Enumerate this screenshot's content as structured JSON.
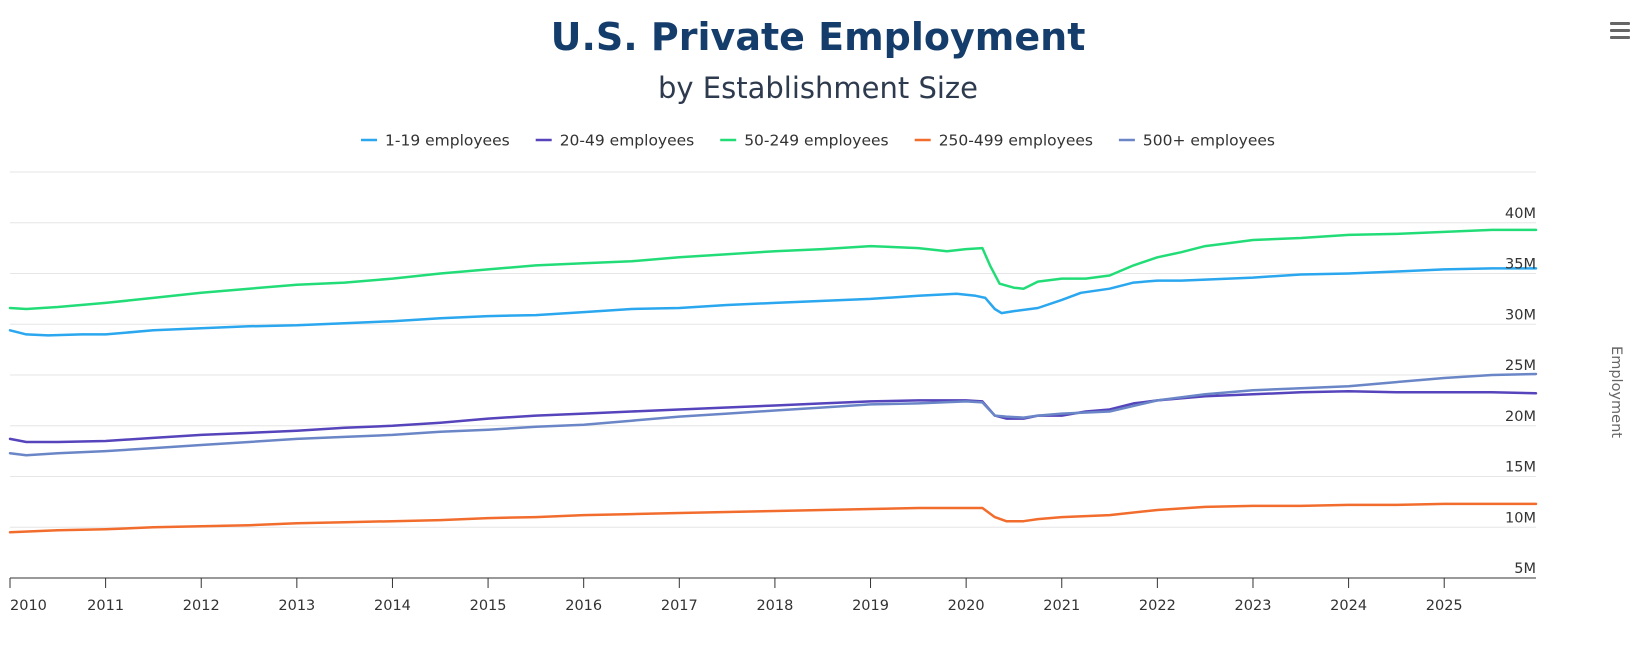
{
  "colors": {
    "title": "#143d6b",
    "subtitle": "#2e3a4d",
    "grid": "#e6e6e6",
    "axis": "#333333",
    "menu": "#666666"
  },
  "chart_data": {
    "type": "line",
    "title": "U.S. Private Employment",
    "subtitle": "by Establishment Size",
    "xlabel": "",
    "ylabel": "Employment",
    "xlim": [
      2010.0,
      2025.96
    ],
    "ylim": [
      5000000,
      45000000
    ],
    "x_ticks": [
      2010,
      2011,
      2012,
      2013,
      2014,
      2015,
      2016,
      2017,
      2018,
      2019,
      2020,
      2021,
      2022,
      2023,
      2024,
      2025
    ],
    "x_tick_labels": [
      "2010",
      "2011",
      "2012",
      "2013",
      "2014",
      "2015",
      "2016",
      "2017",
      "2018",
      "2019",
      "2020",
      "2021",
      "2022",
      "2023",
      "2024",
      "2025"
    ],
    "y_ticks": [
      5000000,
      10000000,
      15000000,
      20000000,
      25000000,
      30000000,
      35000000,
      40000000
    ],
    "y_tick_labels": [
      "5M",
      "10M",
      "15M",
      "20M",
      "25M",
      "30M",
      "35M",
      "40M"
    ],
    "y_axis_position": "right",
    "grid": true,
    "legend_position": "top-center",
    "series": [
      {
        "name": "1-19 employees",
        "color": "#2aa7ee",
        "points": [
          [
            2010.0,
            29.4
          ],
          [
            2010.17,
            29.0
          ],
          [
            2010.4,
            28.9
          ],
          [
            2010.75,
            29.0
          ],
          [
            2011.0,
            29.0
          ],
          [
            2011.5,
            29.4
          ],
          [
            2012.0,
            29.6
          ],
          [
            2012.5,
            29.8
          ],
          [
            2013.0,
            29.9
          ],
          [
            2013.5,
            30.1
          ],
          [
            2014.0,
            30.3
          ],
          [
            2014.5,
            30.6
          ],
          [
            2015.0,
            30.8
          ],
          [
            2015.5,
            30.9
          ],
          [
            2016.0,
            31.2
          ],
          [
            2016.5,
            31.5
          ],
          [
            2017.0,
            31.6
          ],
          [
            2017.5,
            31.9
          ],
          [
            2018.0,
            32.1
          ],
          [
            2018.5,
            32.3
          ],
          [
            2019.0,
            32.5
          ],
          [
            2019.5,
            32.8
          ],
          [
            2019.9,
            33.0
          ],
          [
            2020.1,
            32.8
          ],
          [
            2020.2,
            32.6
          ],
          [
            2020.3,
            31.5
          ],
          [
            2020.37,
            31.1
          ],
          [
            2020.5,
            31.3
          ],
          [
            2020.75,
            31.6
          ],
          [
            2021.0,
            32.4
          ],
          [
            2021.2,
            33.1
          ],
          [
            2021.5,
            33.5
          ],
          [
            2021.75,
            34.1
          ],
          [
            2022.0,
            34.3
          ],
          [
            2022.25,
            34.3
          ],
          [
            2022.5,
            34.4
          ],
          [
            2023.0,
            34.6
          ],
          [
            2023.5,
            34.9
          ],
          [
            2024.0,
            35.0
          ],
          [
            2024.5,
            35.2
          ],
          [
            2025.0,
            35.4
          ],
          [
            2025.5,
            35.5
          ],
          [
            2025.96,
            35.5
          ]
        ]
      },
      {
        "name": "20-49 employees",
        "color": "#5544bb",
        "points": [
          [
            2010.0,
            18.7
          ],
          [
            2010.17,
            18.4
          ],
          [
            2010.5,
            18.4
          ],
          [
            2011.0,
            18.5
          ],
          [
            2011.5,
            18.8
          ],
          [
            2012.0,
            19.1
          ],
          [
            2012.5,
            19.3
          ],
          [
            2013.0,
            19.5
          ],
          [
            2013.5,
            19.8
          ],
          [
            2014.0,
            20.0
          ],
          [
            2014.5,
            20.3
          ],
          [
            2015.0,
            20.7
          ],
          [
            2015.5,
            21.0
          ],
          [
            2016.0,
            21.2
          ],
          [
            2016.5,
            21.4
          ],
          [
            2017.0,
            21.6
          ],
          [
            2017.5,
            21.8
          ],
          [
            2018.0,
            22.0
          ],
          [
            2018.5,
            22.2
          ],
          [
            2019.0,
            22.4
          ],
          [
            2019.5,
            22.5
          ],
          [
            2020.0,
            22.5
          ],
          [
            2020.17,
            22.4
          ],
          [
            2020.3,
            21.0
          ],
          [
            2020.42,
            20.7
          ],
          [
            2020.6,
            20.7
          ],
          [
            2020.75,
            21.0
          ],
          [
            2021.0,
            21.0
          ],
          [
            2021.25,
            21.4
          ],
          [
            2021.5,
            21.6
          ],
          [
            2021.75,
            22.2
          ],
          [
            2022.0,
            22.5
          ],
          [
            2022.5,
            22.9
          ],
          [
            2023.0,
            23.1
          ],
          [
            2023.5,
            23.3
          ],
          [
            2024.0,
            23.4
          ],
          [
            2024.5,
            23.3
          ],
          [
            2025.0,
            23.3
          ],
          [
            2025.5,
            23.3
          ],
          [
            2025.96,
            23.2
          ]
        ]
      },
      {
        "name": "50-249 employees",
        "color": "#22dd77",
        "points": [
          [
            2010.0,
            31.6
          ],
          [
            2010.17,
            31.5
          ],
          [
            2010.5,
            31.7
          ],
          [
            2011.0,
            32.1
          ],
          [
            2011.5,
            32.6
          ],
          [
            2012.0,
            33.1
          ],
          [
            2012.5,
            33.5
          ],
          [
            2013.0,
            33.9
          ],
          [
            2013.5,
            34.1
          ],
          [
            2014.0,
            34.5
          ],
          [
            2014.5,
            35.0
          ],
          [
            2015.0,
            35.4
          ],
          [
            2015.5,
            35.8
          ],
          [
            2016.0,
            36.0
          ],
          [
            2016.5,
            36.2
          ],
          [
            2017.0,
            36.6
          ],
          [
            2017.5,
            36.9
          ],
          [
            2018.0,
            37.2
          ],
          [
            2018.5,
            37.4
          ],
          [
            2019.0,
            37.7
          ],
          [
            2019.5,
            37.5
          ],
          [
            2019.8,
            37.2
          ],
          [
            2020.0,
            37.4
          ],
          [
            2020.17,
            37.5
          ],
          [
            2020.25,
            35.8
          ],
          [
            2020.35,
            34.0
          ],
          [
            2020.5,
            33.6
          ],
          [
            2020.6,
            33.5
          ],
          [
            2020.75,
            34.2
          ],
          [
            2021.0,
            34.5
          ],
          [
            2021.25,
            34.5
          ],
          [
            2021.5,
            34.8
          ],
          [
            2021.75,
            35.8
          ],
          [
            2022.0,
            36.6
          ],
          [
            2022.25,
            37.1
          ],
          [
            2022.5,
            37.7
          ],
          [
            2022.75,
            38.0
          ],
          [
            2023.0,
            38.3
          ],
          [
            2023.5,
            38.5
          ],
          [
            2024.0,
            38.8
          ],
          [
            2024.5,
            38.9
          ],
          [
            2025.0,
            39.1
          ],
          [
            2025.5,
            39.3
          ],
          [
            2025.96,
            39.3
          ]
        ]
      },
      {
        "name": "250-499 employees",
        "color": "#f26d2d",
        "points": [
          [
            2010.0,
            9.5
          ],
          [
            2010.5,
            9.7
          ],
          [
            2011.0,
            9.8
          ],
          [
            2011.5,
            10.0
          ],
          [
            2012.0,
            10.1
          ],
          [
            2012.5,
            10.2
          ],
          [
            2013.0,
            10.4
          ],
          [
            2013.5,
            10.5
          ],
          [
            2014.0,
            10.6
          ],
          [
            2014.5,
            10.7
          ],
          [
            2015.0,
            10.9
          ],
          [
            2015.5,
            11.0
          ],
          [
            2016.0,
            11.2
          ],
          [
            2016.5,
            11.3
          ],
          [
            2017.0,
            11.4
          ],
          [
            2017.5,
            11.5
          ],
          [
            2018.0,
            11.6
          ],
          [
            2018.5,
            11.7
          ],
          [
            2019.0,
            11.8
          ],
          [
            2019.5,
            11.9
          ],
          [
            2020.0,
            11.9
          ],
          [
            2020.17,
            11.9
          ],
          [
            2020.3,
            11.0
          ],
          [
            2020.42,
            10.6
          ],
          [
            2020.6,
            10.6
          ],
          [
            2020.75,
            10.8
          ],
          [
            2021.0,
            11.0
          ],
          [
            2021.5,
            11.2
          ],
          [
            2022.0,
            11.7
          ],
          [
            2022.5,
            12.0
          ],
          [
            2023.0,
            12.1
          ],
          [
            2023.5,
            12.1
          ],
          [
            2024.0,
            12.2
          ],
          [
            2024.5,
            12.2
          ],
          [
            2025.0,
            12.3
          ],
          [
            2025.5,
            12.3
          ],
          [
            2025.96,
            12.3
          ]
        ]
      },
      {
        "name": "500+ employees",
        "color": "#6b86c7",
        "points": [
          [
            2010.0,
            17.3
          ],
          [
            2010.17,
            17.1
          ],
          [
            2010.5,
            17.3
          ],
          [
            2011.0,
            17.5
          ],
          [
            2011.5,
            17.8
          ],
          [
            2012.0,
            18.1
          ],
          [
            2012.5,
            18.4
          ],
          [
            2013.0,
            18.7
          ],
          [
            2013.5,
            18.9
          ],
          [
            2014.0,
            19.1
          ],
          [
            2014.5,
            19.4
          ],
          [
            2015.0,
            19.6
          ],
          [
            2015.5,
            19.9
          ],
          [
            2016.0,
            20.1
          ],
          [
            2016.5,
            20.5
          ],
          [
            2017.0,
            20.9
          ],
          [
            2017.5,
            21.2
          ],
          [
            2018.0,
            21.5
          ],
          [
            2018.5,
            21.8
          ],
          [
            2019.0,
            22.1
          ],
          [
            2019.5,
            22.2
          ],
          [
            2020.0,
            22.4
          ],
          [
            2020.17,
            22.3
          ],
          [
            2020.3,
            21.0
          ],
          [
            2020.42,
            20.9
          ],
          [
            2020.6,
            20.8
          ],
          [
            2020.75,
            21.0
          ],
          [
            2021.0,
            21.2
          ],
          [
            2021.5,
            21.4
          ],
          [
            2022.0,
            22.5
          ],
          [
            2022.5,
            23.1
          ],
          [
            2023.0,
            23.5
          ],
          [
            2023.5,
            23.7
          ],
          [
            2024.0,
            23.9
          ],
          [
            2024.5,
            24.3
          ],
          [
            2025.0,
            24.7
          ],
          [
            2025.5,
            25.0
          ],
          [
            2025.96,
            25.1
          ]
        ]
      }
    ]
  }
}
